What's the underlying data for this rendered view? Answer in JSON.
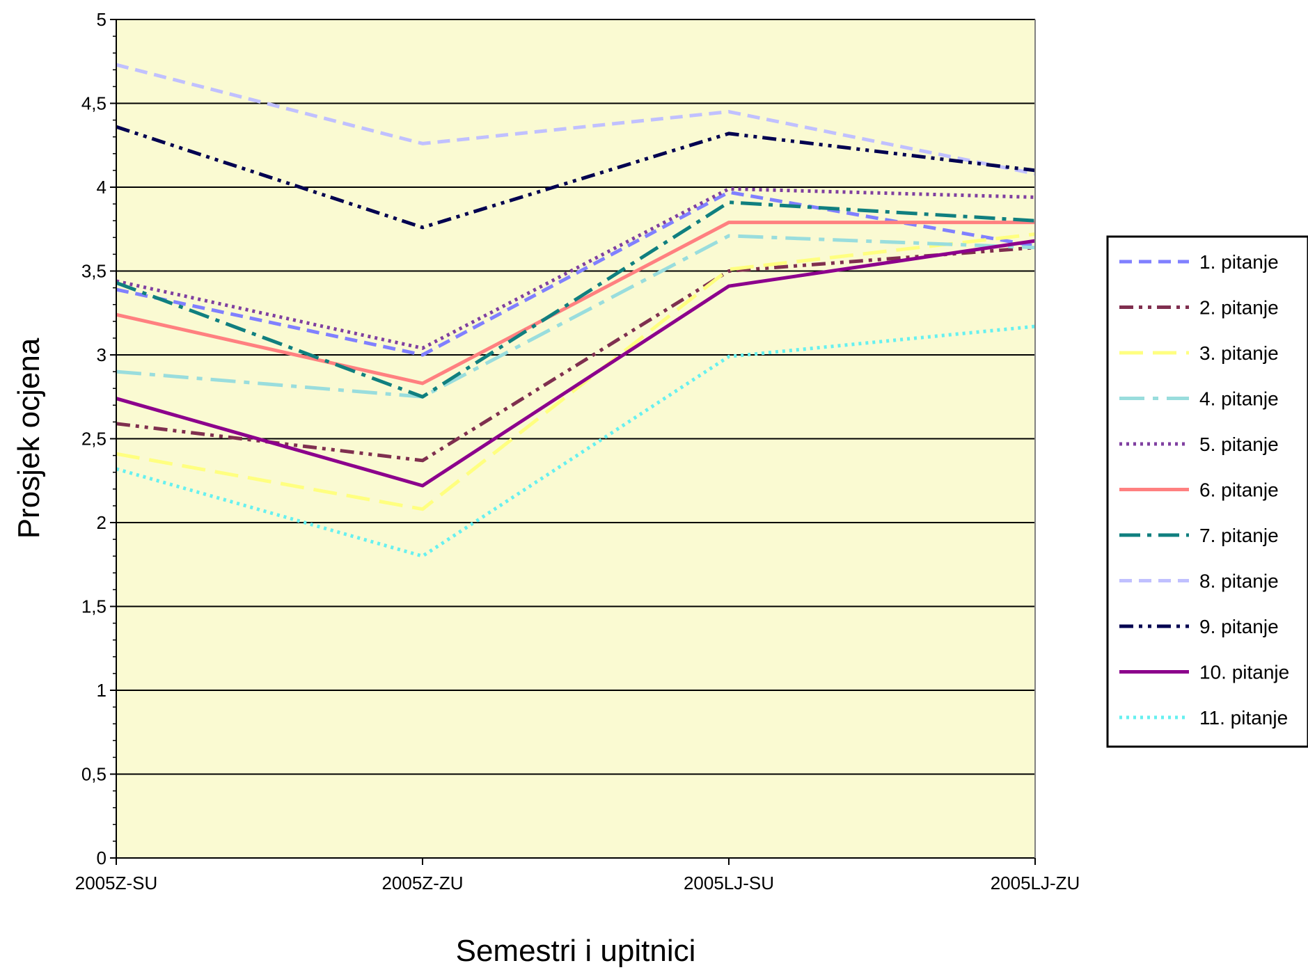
{
  "chart_data": {
    "type": "line",
    "title": "",
    "xlabel": "Semestri i upitnici",
    "ylabel": "Prosjek ocjena",
    "categories": [
      "2005Z-SU",
      "2005Z-ZU",
      "2005LJ-SU",
      "2005LJ-ZU"
    ],
    "ylim": [
      0,
      5
    ],
    "yticks": [
      "0",
      "0,5",
      "1",
      "1,5",
      "2",
      "2,5",
      "3",
      "3,5",
      "4",
      "4,5",
      "5"
    ],
    "grid": true,
    "plot_background": "#FAFAD2",
    "legend_position": "right",
    "series": [
      {
        "name": "1. pitanje",
        "values": [
          3.39,
          3.0,
          3.97,
          3.65
        ],
        "color": "#8080FF",
        "dash": "dash"
      },
      {
        "name": "2. pitanje",
        "values": [
          2.59,
          2.37,
          3.5,
          3.64
        ],
        "color": "#7F2F4F",
        "dash": "dashdotdot"
      },
      {
        "name": "3. pitanje",
        "values": [
          2.41,
          2.08,
          3.51,
          3.72
        ],
        "color": "#FFFF80",
        "dash": "longdash"
      },
      {
        "name": "4. pitanje",
        "values": [
          2.9,
          2.75,
          3.71,
          3.64
        ],
        "color": "#99DDDD",
        "dash": "longdashdot"
      },
      {
        "name": "5. pitanje",
        "values": [
          3.44,
          3.04,
          3.99,
          3.94
        ],
        "color": "#7F3FA0",
        "dash": "dot"
      },
      {
        "name": "6. pitanje",
        "values": [
          3.24,
          2.83,
          3.79,
          3.79
        ],
        "color": "#FF8080",
        "dash": "solid"
      },
      {
        "name": "7. pitanje",
        "values": [
          3.43,
          2.75,
          3.91,
          3.8
        ],
        "color": "#107F7F",
        "dash": "dashdot"
      },
      {
        "name": "8. pitanje",
        "values": [
          4.73,
          4.26,
          4.45,
          4.08
        ],
        "color": "#C0C0FF",
        "dash": "dash"
      },
      {
        "name": "9. pitanje",
        "values": [
          4.36,
          3.76,
          4.32,
          4.1
        ],
        "color": "#000050",
        "dash": "dashdotdot"
      },
      {
        "name": "10. pitanje",
        "values": [
          2.74,
          2.22,
          3.41,
          3.68
        ],
        "color": "#8C008C",
        "dash": "solid"
      },
      {
        "name": "11. pitanje",
        "values": [
          2.32,
          1.8,
          2.99,
          3.17
        ],
        "color": "#66F0F0",
        "dash": "dot"
      }
    ]
  }
}
